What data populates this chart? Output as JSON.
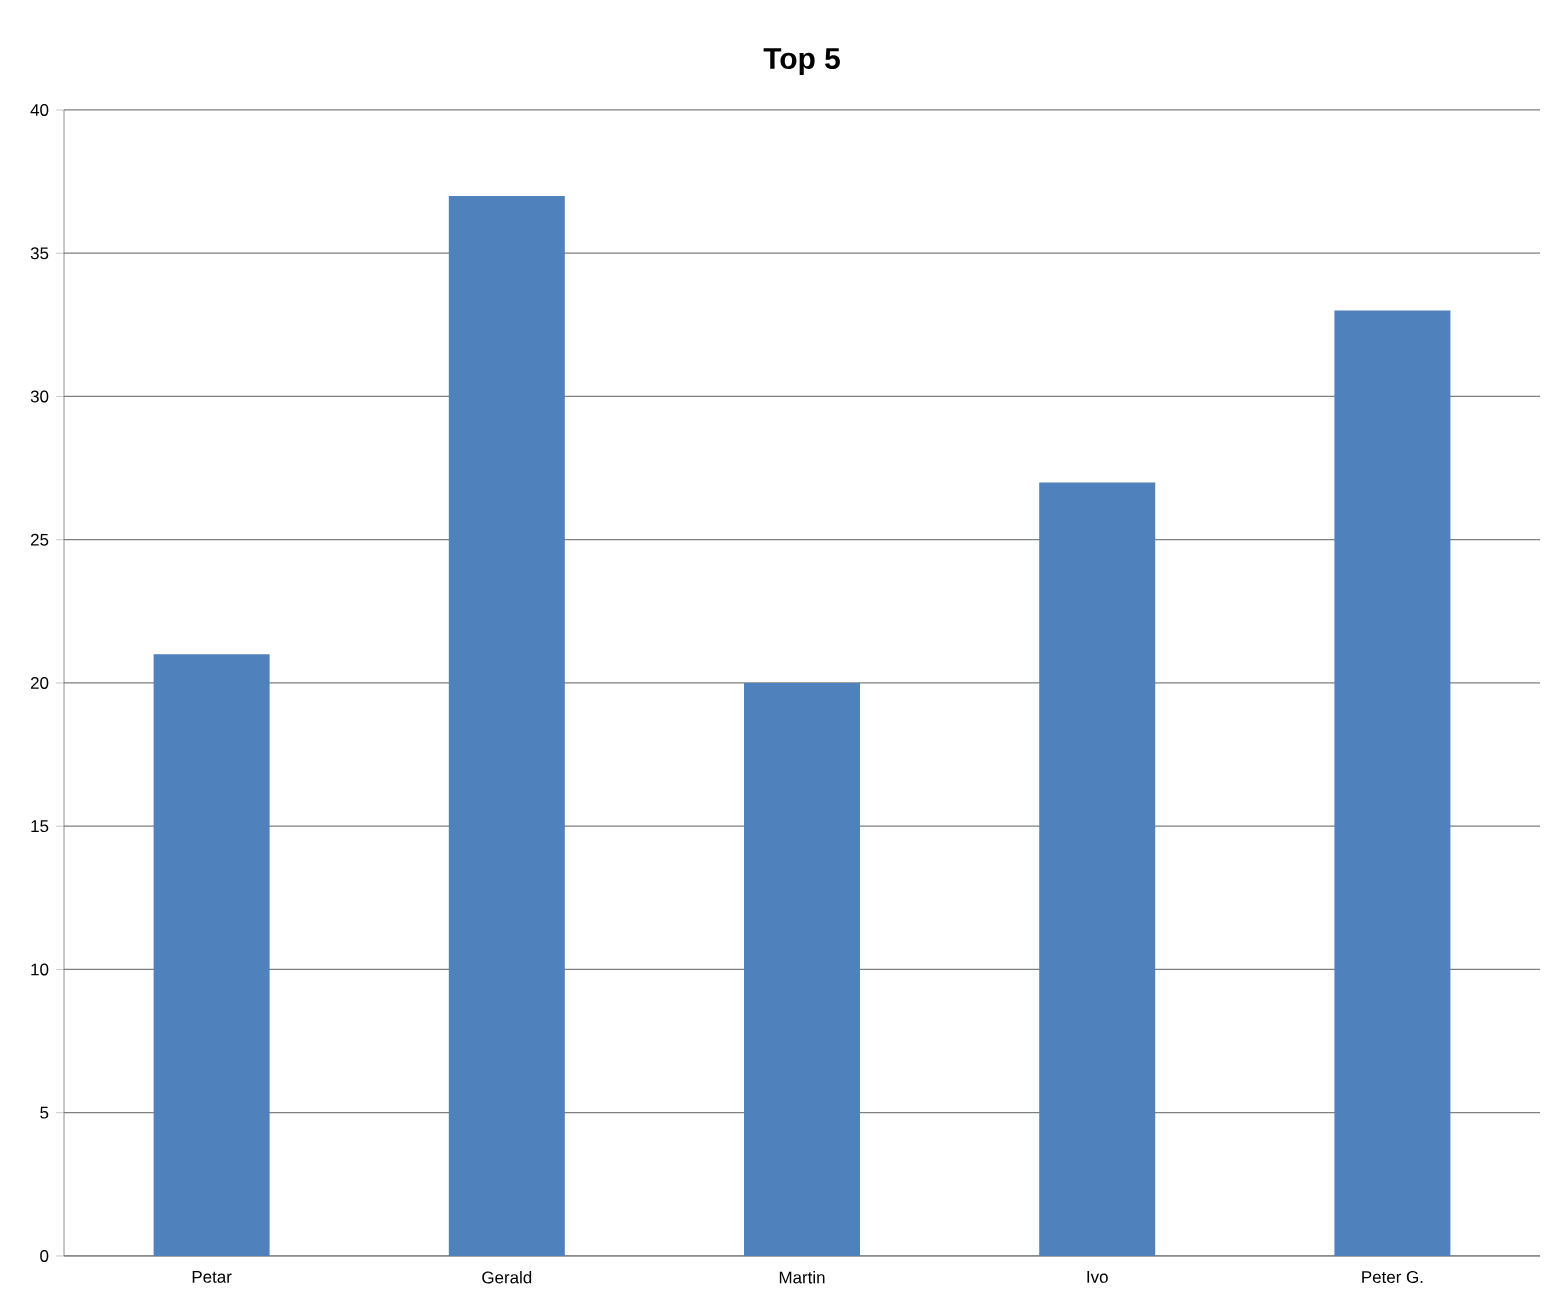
{
  "chart_data": {
    "type": "bar",
    "title": "Top 5",
    "categories": [
      "Petar",
      "Gerald",
      "Martin",
      "Ivo",
      "Peter G."
    ],
    "values": [
      21,
      37,
      20,
      27,
      33
    ],
    "color": "#4f81bd",
    "ylim": [
      0,
      40
    ],
    "yticks": [
      0,
      5,
      10,
      15,
      20,
      25,
      30,
      35,
      40
    ],
    "grid": "y"
  }
}
